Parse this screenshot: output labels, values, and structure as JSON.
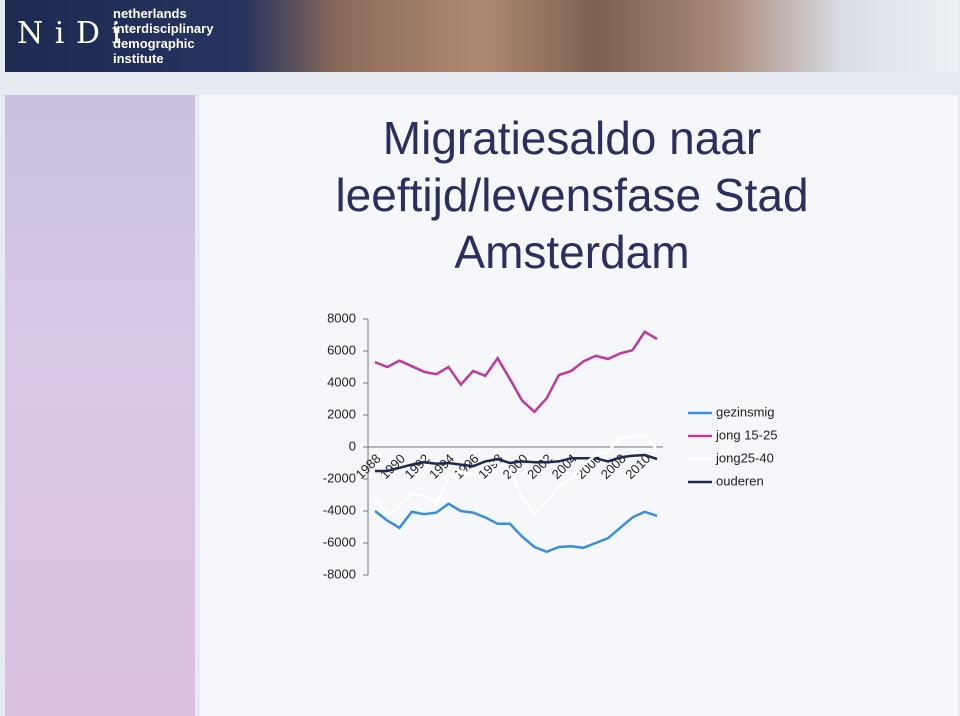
{
  "header": {
    "logo": "N i D i",
    "lines": [
      "netherlands",
      "interdisciplinary",
      "demographic",
      "institute"
    ]
  },
  "chart_data": {
    "type": "line",
    "title": "Migratiesaldo naar leeftijd/levensfase Stad Amsterdam",
    "categories": [
      "1988",
      null,
      "1990",
      null,
      "1992",
      null,
      "1994",
      null,
      "1996",
      null,
      "1998",
      null,
      "2000",
      null,
      "2002",
      null,
      "2004",
      null,
      "2006",
      null,
      "2008",
      null,
      "2010",
      null
    ],
    "series": [
      {
        "name": "gezinsmig",
        "color": "#3a8ee0",
        "values": [
          -4000,
          -4600,
          -5050,
          -4050,
          -4200,
          -4100,
          -3550,
          -4000,
          -4100,
          -4400,
          -4800,
          -4800,
          -5600,
          -6250,
          -6550,
          -6250,
          -6200,
          -6300,
          -6000,
          -5700,
          -5050,
          -4400,
          -4050,
          -4300
        ]
      },
      {
        "name": "jong 15-25",
        "color": "#c0399a",
        "values": [
          5300,
          5000,
          5400,
          5050,
          4700,
          4550,
          5000,
          3900,
          4750,
          4450,
          5550,
          4250,
          2900,
          2200,
          3050,
          4500,
          4750,
          5350,
          5700,
          5500,
          5850,
          6050,
          7200,
          6750
        ]
      },
      {
        "name": "jong25-40",
        "color": "#ffffff",
        "values": [
          -3200,
          -4250,
          -3700,
          -2950,
          -3050,
          -3450,
          -1950,
          -1500,
          -1750,
          -1100,
          -950,
          -1450,
          -3100,
          -4200,
          -3450,
          -2450,
          -2000,
          -1100,
          -500,
          -300,
          600,
          600,
          800,
          -200
        ]
      },
      {
        "name": "ouderen",
        "color": "#1f2a50",
        "values": [
          -1500,
          -1500,
          -1300,
          -1100,
          -950,
          -1050,
          -1000,
          -1100,
          -1200,
          -900,
          -750,
          -1000,
          -900,
          -950,
          -950,
          -900,
          -700,
          -700,
          -700,
          -900,
          -650,
          -550,
          -500,
          -750
        ]
      }
    ],
    "ylim": [
      -8000,
      8000
    ],
    "yticks": [
      -8000,
      -6000,
      -4000,
      -2000,
      0,
      2000,
      4000,
      6000,
      8000
    ],
    "legend": "right"
  }
}
